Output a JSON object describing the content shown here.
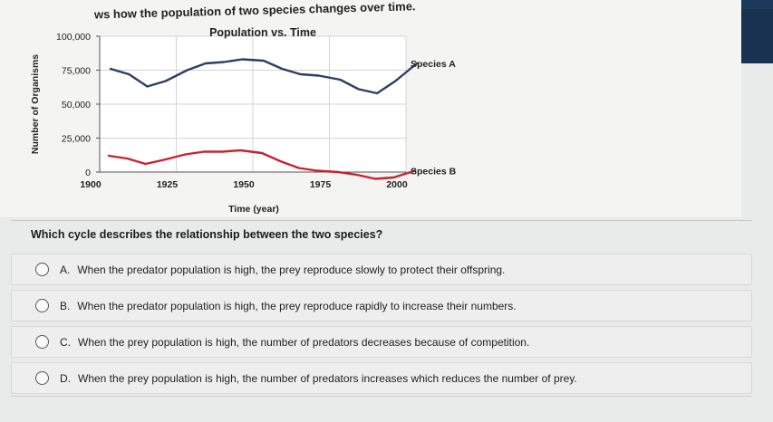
{
  "caption": "ws how the population of two species changes over time.",
  "colors": {
    "species_a": "#2c3e66",
    "species_b": "#c8232c",
    "banner": "#1c3a5e"
  },
  "chart_data": {
    "type": "line",
    "title": "Population vs. Time",
    "xlabel": "Time (year)",
    "ylabel": "Number of Organisms",
    "xlim": [
      1900,
      2000
    ],
    "ylim": [
      0,
      100000
    ],
    "x_ticks": [
      "1900",
      "1925",
      "1950",
      "1975",
      "2000"
    ],
    "y_ticks": [
      "0",
      "25,000",
      "50,000",
      "75,000",
      "100,000"
    ],
    "grid": true,
    "series": [
      {
        "name": "Species A",
        "x": [
          1900,
          1906,
          1912,
          1918,
          1925,
          1931,
          1937,
          1943,
          1950,
          1956,
          1962,
          1968,
          1975,
          1981,
          1987,
          1993,
          2000
        ],
        "y": [
          76000,
          72000,
          63000,
          67000,
          75000,
          80000,
          81000,
          83000,
          82000,
          76000,
          72000,
          71000,
          68000,
          61000,
          58000,
          67000,
          80000
        ]
      },
      {
        "name": "Species B",
        "x": [
          1900,
          1906,
          1912,
          1918,
          1925,
          1931,
          1937,
          1943,
          1950,
          1956,
          1962,
          1968,
          1975,
          1981,
          1987,
          1993,
          2000
        ],
        "y": [
          12000,
          10000,
          6000,
          9000,
          13000,
          15000,
          15000,
          16000,
          14000,
          8000,
          3000,
          1000,
          0,
          -2000,
          -5000,
          -4000,
          1000
        ]
      }
    ]
  },
  "question": "Which cycle describes the relationship between the two species?",
  "options": [
    {
      "letter": "A.",
      "text": "When the predator population is high, the prey reproduce slowly to protect their offspring."
    },
    {
      "letter": "B.",
      "text": "When the predator population is high, the prey reproduce rapidly to increase their numbers."
    },
    {
      "letter": "C.",
      "text": "When the prey population is high, the number of predators decreases because of competition."
    },
    {
      "letter": "D.",
      "text": "When the prey population is high, the number of predators increases which reduces the number of prey."
    }
  ]
}
